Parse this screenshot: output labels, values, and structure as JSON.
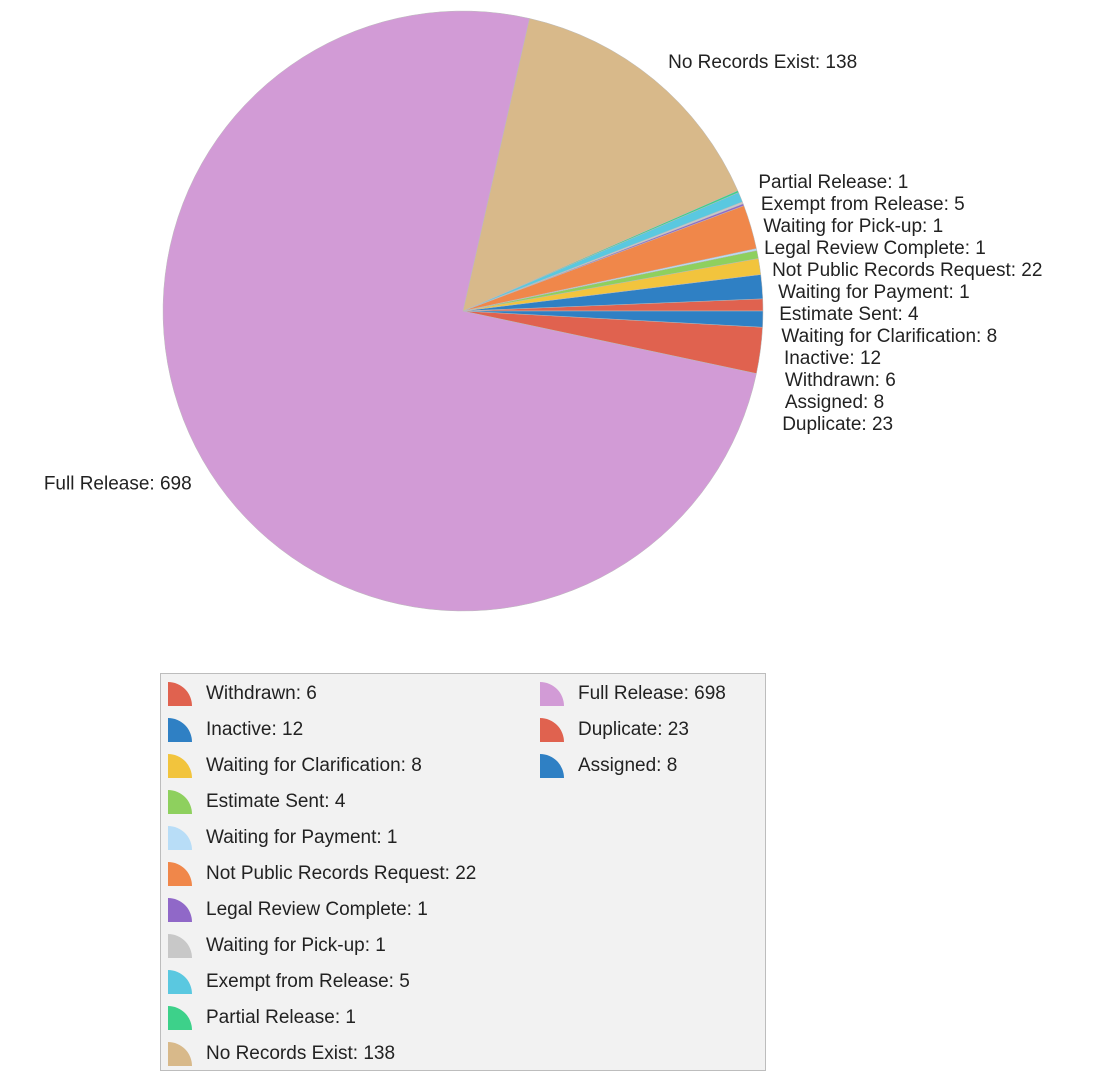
{
  "chart_data": {
    "type": "pie",
    "labels": [
      "Withdrawn: 6",
      "Inactive: 12",
      "Waiting for Clarification: 8",
      "Estimate Sent: 4",
      "Waiting for Payment: 1",
      "Not Public Records Request: 22",
      "Legal Review Complete: 1",
      "Waiting for Pick-up: 1",
      "Exempt from Release: 5",
      "Partial Release: 1",
      "No Records Exist: 138",
      "Full Release: 698",
      "Duplicate: 23",
      "Assigned: 8"
    ],
    "values": [
      6,
      12,
      8,
      4,
      1,
      22,
      1,
      1,
      5,
      1,
      138,
      698,
      23,
      8
    ],
    "colors": [
      "#e0624f",
      "#2f80c4",
      "#f2c43d",
      "#8ed05e",
      "#b8ddf7",
      "#f0874a",
      "#9068c8",
      "#c8c8c8",
      "#5ac8e0",
      "#3dd18a",
      "#d8b98a",
      "#d29bd6",
      "#e0624f",
      "#2f80c4"
    ],
    "legend": true
  }
}
